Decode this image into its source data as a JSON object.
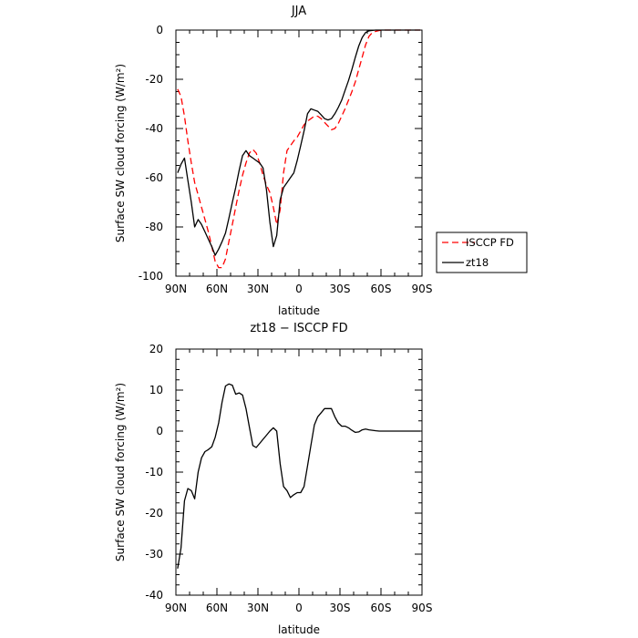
{
  "chart_data": [
    {
      "type": "line",
      "title": "JJA",
      "xlabel": "latitude",
      "ylabel": "Surface SW cloud forcing (W/m²)",
      "xlim": [
        90,
        -90
      ],
      "ylim": [
        -100,
        0
      ],
      "xtick_values": [
        90,
        60,
        30,
        0,
        -30,
        -60,
        -90
      ],
      "xtick_labels": [
        "90N",
        "60N",
        "30N",
        "0",
        "30S",
        "60S",
        "90S"
      ],
      "ytick_values": [
        0,
        -20,
        -40,
        -60,
        -80,
        -100
      ],
      "ytick_labels": [
        "0",
        "-20",
        "-40",
        "-60",
        "-80",
        "-100"
      ],
      "grid": false,
      "legend": "outside-right",
      "series": [
        {
          "name": "ISCCP FD",
          "color": "#ff0000",
          "dash": "dashed",
          "x": [
            88.75,
            86.25,
            83.75,
            81.25,
            78.75,
            76.25,
            73.75,
            71.25,
            68.75,
            66.25,
            63.75,
            61.25,
            58.75,
            56.25,
            53.75,
            51.25,
            48.75,
            46.25,
            43.75,
            41.25,
            38.75,
            36.25,
            33.75,
            31.25,
            28.75,
            26.25,
            23.75,
            21.25,
            18.75,
            16.25,
            13.75,
            11.25,
            8.75,
            6.25,
            3.75,
            1.25,
            -1.25,
            -3.75,
            -6.25,
            -8.75,
            -11.25,
            -13.75,
            -16.25,
            -18.75,
            -21.25,
            -23.75,
            -26.25,
            -28.75,
            -31.25,
            -33.75,
            -36.25,
            -38.75,
            -41.25,
            -43.75,
            -46.25,
            -48.75,
            -51.25,
            -53.75,
            -56.25,
            -58.75,
            -61.25,
            -63.75,
            -66.25,
            -68.75,
            -71.25,
            -73.75,
            -76.25,
            -78.75,
            -81.25,
            -83.75,
            -86.25,
            -88.75
          ],
          "y": [
            -24,
            -27,
            -35,
            -45,
            -54,
            -62,
            -67,
            -72,
            -77,
            -82,
            -88,
            -94,
            -96.5,
            -96.5,
            -93,
            -86,
            -79,
            -72,
            -65,
            -59,
            -54,
            -50,
            -48.5,
            -50,
            -54,
            -59,
            -63,
            -66,
            -72,
            -79,
            -73,
            -58,
            -49,
            -47,
            -45,
            -43.5,
            -41,
            -38.5,
            -37,
            -36,
            -35,
            -35,
            -36,
            -37.5,
            -39,
            -40.5,
            -40,
            -38,
            -35,
            -32,
            -28.5,
            -25,
            -21,
            -16,
            -11,
            -6,
            -2.5,
            -1,
            -0.5,
            -0.2,
            0,
            0,
            0,
            0,
            0,
            0,
            0,
            0,
            0,
            0,
            0,
            0
          ]
        },
        {
          "name": "zt18",
          "color": "#000000",
          "dash": "solid",
          "x": [
            88.75,
            86.25,
            83.75,
            81.25,
            78.75,
            76.25,
            73.75,
            71.25,
            68.75,
            66.25,
            63.75,
            61.25,
            58.75,
            56.25,
            53.75,
            51.25,
            48.75,
            46.25,
            43.75,
            41.25,
            38.75,
            36.25,
            33.75,
            31.25,
            28.75,
            26.25,
            23.75,
            21.25,
            18.75,
            16.25,
            13.75,
            11.25,
            8.75,
            6.25,
            3.75,
            1.25,
            -1.25,
            -3.75,
            -6.25,
            -8.75,
            -11.25,
            -13.75,
            -16.25,
            -18.75,
            -21.25,
            -23.75,
            -26.25,
            -28.75,
            -31.25,
            -33.75,
            -36.25,
            -38.75,
            -41.25,
            -43.75,
            -46.25,
            -48.75,
            -51.25,
            -53.75,
            -56.25,
            -58.75,
            -61.25,
            -63.75,
            -66.25,
            -68.75,
            -71.25,
            -73.75,
            -76.25,
            -78.75,
            -81.25,
            -83.75,
            -86.25,
            -88.75
          ],
          "y": [
            -58,
            -54.5,
            -52,
            -61,
            -70,
            -80,
            -77,
            -79,
            -82,
            -85,
            -88,
            -91.5,
            -89,
            -86,
            -82.5,
            -76.5,
            -70,
            -64,
            -57,
            -51,
            -49,
            -51,
            -52,
            -53,
            -54,
            -56,
            -65,
            -78,
            -88,
            -83.5,
            -69,
            -64,
            -62,
            -60,
            -58,
            -53,
            -47,
            -41,
            -34,
            -32,
            -32.5,
            -33,
            -34.5,
            -36,
            -36.5,
            -36,
            -34,
            -31.5,
            -28.5,
            -24.5,
            -20.5,
            -16,
            -11,
            -6.5,
            -3,
            -1,
            -0.3,
            -0.1,
            0,
            0,
            0,
            0,
            0,
            0,
            0,
            0,
            0,
            0,
            0,
            0,
            0,
            0
          ]
        }
      ]
    },
    {
      "type": "line",
      "title": "zt18 − ISCCP FD",
      "xlabel": "latitude",
      "ylabel": "Surface SW cloud forcing (W/m²)",
      "xlim": [
        90,
        -90
      ],
      "ylim": [
        -40,
        20
      ],
      "xtick_values": [
        90,
        60,
        30,
        0,
        -30,
        -60,
        -90
      ],
      "xtick_labels": [
        "90N",
        "60N",
        "30N",
        "0",
        "30S",
        "60S",
        "90S"
      ],
      "ytick_values": [
        20,
        10,
        0,
        -10,
        -20,
        -30,
        -40
      ],
      "ytick_labels": [
        "20",
        "10",
        "0",
        "-10",
        "-20",
        "-30",
        "-40"
      ],
      "grid": false,
      "series": [
        {
          "color": "#000000",
          "dash": "solid",
          "x": [
            88.75,
            86.25,
            83.75,
            81.25,
            78.75,
            76.25,
            73.75,
            71.25,
            68.75,
            66.25,
            63.75,
            61.25,
            58.75,
            56.25,
            53.75,
            51.25,
            48.75,
            46.25,
            43.75,
            41.25,
            38.75,
            36.25,
            33.75,
            31.25,
            28.75,
            26.25,
            23.75,
            21.25,
            18.75,
            16.25,
            13.75,
            11.25,
            8.75,
            6.25,
            3.75,
            1.25,
            -1.25,
            -3.75,
            -6.25,
            -8.75,
            -11.25,
            -13.75,
            -16.25,
            -18.75,
            -21.25,
            -23.75,
            -26.25,
            -28.75,
            -31.25,
            -33.75,
            -36.25,
            -38.75,
            -41.25,
            -43.75,
            -46.25,
            -48.75,
            -51.25,
            -53.75,
            -56.25,
            -58.75,
            -61.25,
            -63.75,
            -66.25,
            -68.75,
            -71.25,
            -73.75,
            -76.25,
            -78.75,
            -81.25,
            -83.75,
            -86.25,
            -88.75
          ],
          "y": [
            -33.5,
            -28.5,
            -17,
            -14,
            -14.5,
            -16.5,
            -10,
            -6.5,
            -5,
            -4.5,
            -3.8,
            -1.5,
            2,
            7,
            11,
            11.5,
            11.2,
            9,
            9.3,
            8.8,
            5.5,
            1,
            -3.5,
            -4,
            -3,
            -2,
            -1,
            0,
            0.8,
            0,
            -8,
            -13.5,
            -14.5,
            -16.2,
            -15.5,
            -15,
            -15,
            -13.5,
            -8.5,
            -3.5,
            1.5,
            3.5,
            4.5,
            5.5,
            5.5,
            5.5,
            3.5,
            2,
            1.2,
            1.2,
            0.8,
            0.2,
            -0.3,
            -0.2,
            0.3,
            0.5,
            0.3,
            0.2,
            0.1,
            0,
            0,
            0,
            0,
            0,
            0,
            0,
            0,
            0,
            0,
            0,
            0,
            0
          ]
        }
      ]
    }
  ]
}
